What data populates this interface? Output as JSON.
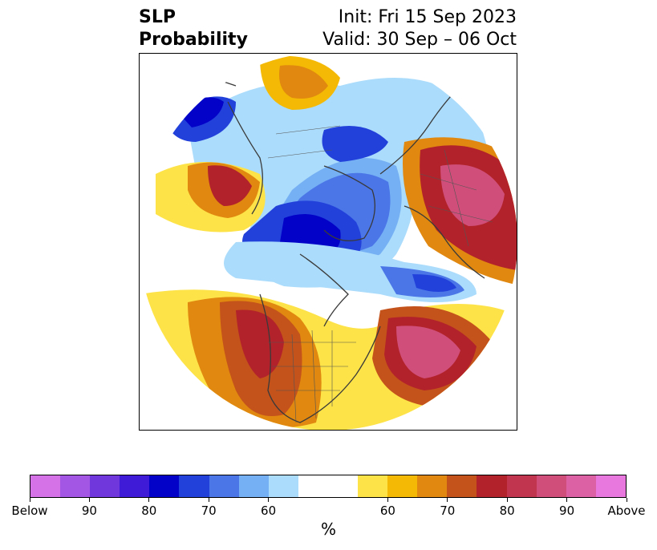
{
  "title": {
    "left_line1": "SLP",
    "left_line2": "Probability",
    "right_line1": "Init: Fri 15 Sep 2023",
    "right_line2": "Valid: 30 Sep – 06 Oct"
  },
  "colorbar": {
    "colors": [
      "#d572e8",
      "#a356e4",
      "#7038dc",
      "#3f1bd7",
      "#0202c8",
      "#2241db",
      "#4a76e8",
      "#75b0f4",
      "#abdcfb",
      "#ffffff",
      "#ffffff",
      "#fde347",
      "#f3b904",
      "#e0880f",
      "#c4521b",
      "#b2222a",
      "#c1364e",
      "#cf4f7a",
      "#db61a4",
      "#e878de"
    ],
    "tick_labels": [
      "Below",
      "90",
      "80",
      "70",
      "60",
      "60",
      "70",
      "80",
      "90",
      "Above"
    ],
    "unit": "%"
  },
  "map": {
    "projection": "north-polar-stereographic",
    "field": "sea level pressure probability anomaly",
    "features": [
      "coastlines",
      "country-borders",
      "us-state-borders"
    ]
  }
}
